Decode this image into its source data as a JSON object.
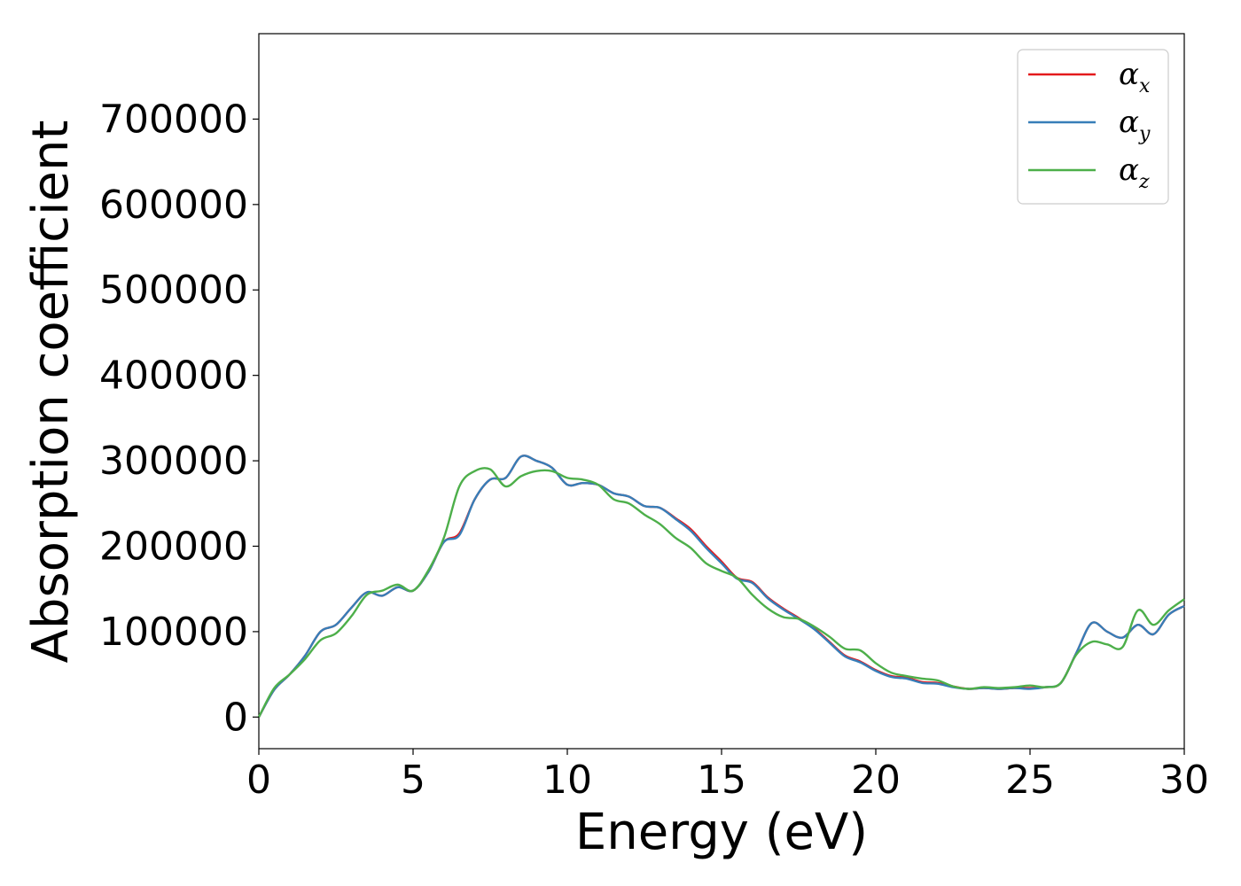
{
  "chart_data": {
    "type": "line",
    "title": "",
    "xlabel": "Energy (eV)",
    "ylabel": "Absorption coefficient",
    "xlim": [
      0,
      30
    ],
    "ylim": [
      -37000,
      800000
    ],
    "xticks": [
      0,
      5,
      10,
      15,
      20,
      25,
      30
    ],
    "yticks": [
      0,
      100000,
      200000,
      300000,
      400000,
      500000,
      600000,
      700000
    ],
    "grid": false,
    "legend_position": "top-right",
    "x": [
      0,
      0.5,
      1,
      1.5,
      2,
      2.5,
      3,
      3.5,
      4,
      4.5,
      5,
      5.5,
      6,
      6.5,
      7,
      7.5,
      8,
      8.5,
      9,
      9.5,
      10,
      10.5,
      11,
      11.5,
      12,
      12.5,
      13,
      13.5,
      14,
      14.5,
      15,
      15.5,
      16,
      16.5,
      17,
      17.5,
      18,
      18.5,
      19,
      19.5,
      20,
      20.5,
      21,
      21.5,
      22,
      22.5,
      23,
      23.5,
      24,
      24.5,
      25,
      25.5,
      26,
      26.5,
      27,
      27.5,
      28,
      28.5,
      29,
      29.5,
      30
    ],
    "series": [
      {
        "name": "α",
        "subscript": "x",
        "color": "#e41a1c",
        "values": [
          0,
          32000,
          50000,
          72000,
          100000,
          108000,
          128000,
          146000,
          142000,
          152000,
          148000,
          170000,
          205000,
          215000,
          255000,
          278000,
          280000,
          305000,
          300000,
          292000,
          272000,
          274000,
          272000,
          262000,
          258000,
          247000,
          245000,
          233000,
          220000,
          200000,
          182000,
          163000,
          158000,
          140000,
          127000,
          116000,
          104000,
          88000,
          72000,
          65000,
          55000,
          48000,
          46000,
          41000,
          40000,
          36000,
          33000,
          34000,
          33000,
          34000,
          34000,
          35000,
          40000,
          75000,
          110000,
          100000,
          93000,
          108000,
          97000,
          120000,
          130000
        ]
      },
      {
        "name": "α",
        "subscript": "y",
        "color": "#377eb8",
        "values": [
          0,
          32000,
          50000,
          72000,
          100000,
          108000,
          128000,
          146000,
          142000,
          152000,
          148000,
          170000,
          205000,
          213000,
          255000,
          278000,
          280000,
          305000,
          300000,
          292000,
          272000,
          274000,
          272000,
          262000,
          258000,
          247000,
          245000,
          232000,
          218000,
          198000,
          180000,
          162000,
          157000,
          139000,
          126000,
          115000,
          103000,
          87000,
          71000,
          64000,
          54000,
          47000,
          45000,
          40000,
          39000,
          35000,
          33000,
          34000,
          33000,
          34000,
          33000,
          35000,
          40000,
          75000,
          110000,
          100000,
          93000,
          108000,
          97000,
          120000,
          130000
        ]
      },
      {
        "name": "α",
        "subscript": "z",
        "color": "#4daf4a",
        "values": [
          0,
          34000,
          50000,
          68000,
          90000,
          98000,
          118000,
          143000,
          148000,
          155000,
          148000,
          172000,
          210000,
          270000,
          288000,
          290000,
          270000,
          282000,
          288000,
          288000,
          280000,
          278000,
          272000,
          255000,
          250000,
          237000,
          226000,
          210000,
          198000,
          180000,
          171000,
          163000,
          143000,
          127000,
          117000,
          115000,
          106000,
          94000,
          80000,
          78000,
          63000,
          52000,
          48000,
          45000,
          43000,
          36000,
          33000,
          35000,
          34000,
          35000,
          37000,
          35000,
          40000,
          73000,
          88000,
          85000,
          82000,
          125000,
          108000,
          125000,
          138000
        ]
      }
    ]
  }
}
